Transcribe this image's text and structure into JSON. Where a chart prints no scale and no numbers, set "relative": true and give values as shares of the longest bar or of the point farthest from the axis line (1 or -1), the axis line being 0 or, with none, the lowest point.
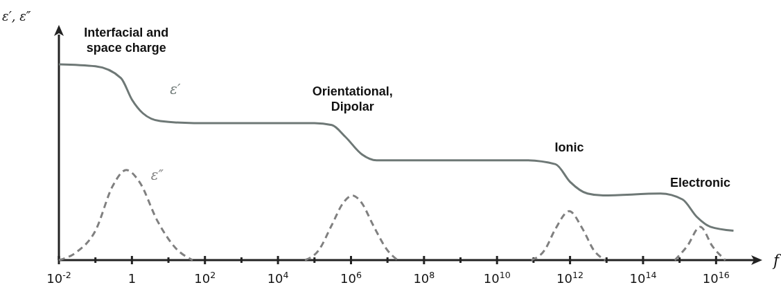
{
  "chart_data": {
    "type": "line",
    "relative": true,
    "log": "x",
    "xlabel": "f",
    "ylabel": "ε′, ε″",
    "xlim": [
      0.01,
      1e+17
    ],
    "xticks": [
      {
        "value": 0.01,
        "label": "10$^{-2}$"
      },
      {
        "value": 0.1,
        "label": null
      },
      1,
      {
        "value": 10,
        "label": null
      },
      {
        "value": 100,
        "label": "10$^{2}$"
      },
      {
        "value": 1000.0,
        "label": null
      },
      {
        "value": 10000.0,
        "label": "10$^{4}$"
      },
      {
        "value": 100000.0,
        "label": null
      },
      {
        "value": 1000000.0,
        "label": "10$^{6}$"
      },
      {
        "value": 10000000.0,
        "label": null
      },
      {
        "value": 100000000.0,
        "label": "10$^{8}$"
      },
      {
        "value": 1000000000.0,
        "label": null
      },
      {
        "value": 10000000000.0,
        "label": "10$^{10}$"
      },
      {
        "value": 100000000000.0,
        "label": null
      },
      {
        "value": 1000000000000.0,
        "label": "10$^{12}$"
      },
      {
        "value": 10000000000000.0,
        "label": null
      },
      {
        "value": 100000000000000.0,
        "label": "10$^{14}$"
      },
      {
        "value": 1000000000000000.0,
        "label": null
      },
      {
        "value": 1e+16,
        "label": "10$^{16}$"
      }
    ],
    "grid": false,
    "legend": false,
    "marker": "none",
    "series": [
      {
        "name": "ε′",
        "color": "#6e7876",
        "line_style": "solid",
        "x": [
          0.01,
          0.1,
          0.5,
          1,
          2,
          6,
          50,
          100000.0,
          300000.0,
          700000.0,
          2000000.0,
          5000000.0,
          60000000000.0,
          400000000000.0,
          1000000000000.0,
          3000000000000.0,
          8000000000000.0,
          300000000000000.0,
          1200000000000000.0,
          3000000000000000.0,
          7000000000000000.0,
          3e+16
        ],
        "values": [
          1.0,
          0.99,
          0.93,
          0.82,
          0.75,
          0.71,
          0.7,
          0.7,
          0.69,
          0.63,
          0.54,
          0.51,
          0.51,
          0.49,
          0.4,
          0.34,
          0.33,
          0.34,
          0.31,
          0.22,
          0.17,
          0.15
        ]
      },
      {
        "name": "ε″",
        "color": "#808080",
        "line_style": "dashed",
        "x": [
          0.01,
          0.03,
          0.1,
          0.3,
          0.7,
          1.6,
          5,
          16,
          46,
          1000.0,
          55000.0,
          130000.0,
          300000.0,
          600000.0,
          1100000.0,
          2000000.0,
          4000000.0,
          10000000.0,
          19000000.0,
          1000000000.0,
          87000000000.0,
          200000000000.0,
          400000000000.0,
          950000000000.0,
          2200000000000.0,
          4500000000000.0,
          9300000000000.0,
          100000000000000.0,
          740000000000000.0,
          1600000000000000.0,
          3700000000000000.0,
          8000000000000000.0,
          1.8e+16
        ],
        "values": [
          0,
          0.04,
          0.15,
          0.38,
          0.46,
          0.4,
          0.2,
          0.06,
          0,
          null,
          0,
          0.05,
          0.18,
          0.29,
          0.33,
          0.29,
          0.18,
          0.05,
          0,
          null,
          0,
          0.05,
          0.16,
          0.25,
          0.16,
          0.05,
          0,
          null,
          0,
          0.07,
          0.17,
          0.07,
          0
        ]
      }
    ],
    "annotations": [
      "Interfacial and space charge",
      "Orientational, Dipolar",
      "Ionic",
      "Electronic"
    ]
  }
}
